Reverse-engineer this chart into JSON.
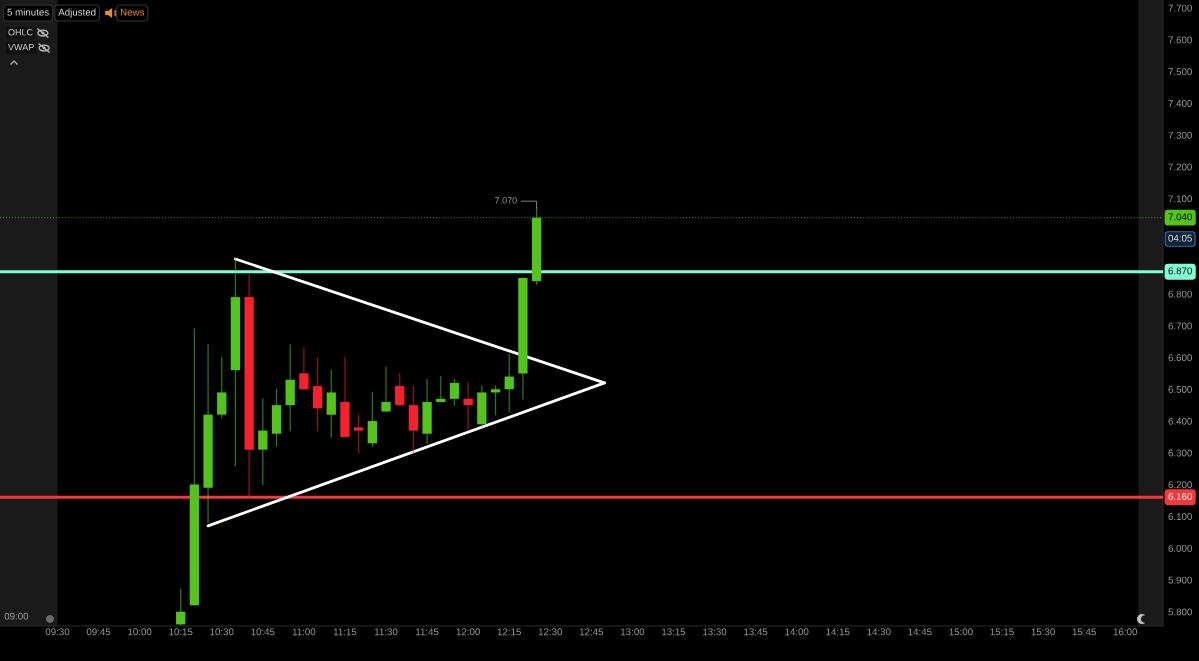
{
  "chart_data": {
    "type": "candlestick",
    "x": [
      10.25,
      10.3333,
      10.4167,
      10.5,
      10.5833,
      10.6667,
      10.75,
      10.8333,
      10.9167,
      11.0,
      11.0833,
      11.1667,
      11.25,
      11.3333,
      11.4167,
      11.5,
      11.5833,
      11.6667,
      11.75,
      11.8333,
      11.9167,
      12.0,
      12.0833,
      12.1667,
      12.25,
      12.3333,
      12.4167
    ],
    "ohlc": [
      [
        5.76,
        5.87,
        5.76,
        5.8
      ],
      [
        5.82,
        6.69,
        5.82,
        6.2
      ],
      [
        6.19,
        6.64,
        6.08,
        6.42
      ],
      [
        6.42,
        6.6,
        6.41,
        6.49
      ],
      [
        6.56,
        6.91,
        6.26,
        6.79
      ],
      [
        6.79,
        6.86,
        6.16,
        6.31
      ],
      [
        6.31,
        6.47,
        6.2,
        6.37
      ],
      [
        6.36,
        6.5,
        6.32,
        6.45
      ],
      [
        6.45,
        6.64,
        6.37,
        6.53
      ],
      [
        6.55,
        6.63,
        6.5,
        6.5
      ],
      [
        6.51,
        6.6,
        6.37,
        6.44
      ],
      [
        6.42,
        6.56,
        6.35,
        6.49
      ],
      [
        6.46,
        6.6,
        6.35,
        6.35
      ],
      [
        6.38,
        6.42,
        6.3,
        6.37
      ],
      [
        6.33,
        6.49,
        6.32,
        6.4
      ],
      [
        6.43,
        6.57,
        6.43,
        6.46
      ],
      [
        6.51,
        6.55,
        6.45,
        6.45
      ],
      [
        6.45,
        6.51,
        6.3,
        6.37
      ],
      [
        6.36,
        6.53,
        6.33,
        6.46
      ],
      [
        6.46,
        6.54,
        6.46,
        6.47
      ],
      [
        6.47,
        6.53,
        6.45,
        6.52
      ],
      [
        6.47,
        6.52,
        6.37,
        6.45
      ],
      [
        6.39,
        6.51,
        6.38,
        6.49
      ],
      [
        6.49,
        6.51,
        6.42,
        6.5
      ],
      [
        6.5,
        6.61,
        6.43,
        6.54
      ],
      [
        6.55,
        6.85,
        6.47,
        6.85
      ],
      [
        6.84,
        7.07,
        6.83,
        7.04
      ]
    ],
    "colors": [
      "#52c41a",
      "#52c41a",
      "#52c41a",
      "#52c41a",
      "#52c41a",
      "#f5222d",
      "#52c41a",
      "#52c41a",
      "#52c41a",
      "#f5222d",
      "#f5222d",
      "#52c41a",
      "#f5222d",
      "#f5222d",
      "#52c41a",
      "#52c41a",
      "#f5222d",
      "#f5222d",
      "#52c41a",
      "#52c41a",
      "#52c41a",
      "#f5222d",
      "#52c41a",
      "#52c41a",
      "#52c41a",
      "#52c41a",
      "#52c41a"
    ],
    "series": [
      {
        "type": "line",
        "color": "#ffffff",
        "x": [
          10.5833,
          12.83
        ],
        "values": [
          6.91,
          6.52
        ]
      },
      {
        "type": "line",
        "color": "#ffffff",
        "x": [
          10.4167,
          12.83
        ],
        "values": [
          6.07,
          6.52
        ]
      }
    ],
    "xlim": [
      9.15,
      16.23
    ],
    "xticks": [
      {
        "value": 9.5,
        "label": "09:30"
      },
      {
        "value": 9.75,
        "label": "09:45"
      },
      {
        "value": 10.0,
        "label": "10:00"
      },
      {
        "value": 10.25,
        "label": "10:15"
      },
      {
        "value": 10.5,
        "label": "10:30"
      },
      {
        "value": 10.75,
        "label": "10:45"
      },
      {
        "value": 11.0,
        "label": "11:00"
      },
      {
        "value": 11.25,
        "label": "11:15"
      },
      {
        "value": 11.5,
        "label": "11:30"
      },
      {
        "value": 11.75,
        "label": "11:45"
      },
      {
        "value": 12.0,
        "label": "12:00"
      },
      {
        "value": 12.25,
        "label": "12:15"
      },
      {
        "value": 12.5,
        "label": "12:30"
      },
      {
        "value": 12.75,
        "label": "12:45"
      },
      {
        "value": 13.0,
        "label": "13:00"
      },
      {
        "value": 13.25,
        "label": "13:15"
      },
      {
        "value": 13.5,
        "label": "13:30"
      },
      {
        "value": 13.75,
        "label": "13:45"
      },
      {
        "value": 14.0,
        "label": "14:00"
      },
      {
        "value": 14.25,
        "label": "14:15"
      },
      {
        "value": 14.5,
        "label": "14:30"
      },
      {
        "value": 14.75,
        "label": "14:45"
      },
      {
        "value": 15.0,
        "label": "15:00"
      },
      {
        "value": 15.25,
        "label": "15:15"
      },
      {
        "value": 15.5,
        "label": "15:30"
      },
      {
        "value": 15.75,
        "label": "15:45"
      },
      {
        "value": 16.0,
        "label": "16:00"
      }
    ],
    "ylim": [
      5.755,
      7.725
    ],
    "yticks": [
      {
        "value": 5.8,
        "label": "5.800"
      },
      {
        "value": 5.9,
        "label": "5.900"
      },
      {
        "value": 6.0,
        "label": "6.000"
      },
      {
        "value": 6.1,
        "label": "6.100"
      },
      {
        "value": 6.2,
        "label": "6.200"
      },
      {
        "value": 6.3,
        "label": "6.300"
      },
      {
        "value": 6.4,
        "label": "6.400"
      },
      {
        "value": 6.5,
        "label": "6.500"
      },
      {
        "value": 6.6,
        "label": "6.600"
      },
      {
        "value": 6.7,
        "label": "6.700"
      },
      {
        "value": 6.8,
        "label": "6.800"
      },
      {
        "value": 7.1,
        "label": "7.100"
      },
      {
        "value": 7.2,
        "label": "7.200"
      },
      {
        "value": 7.3,
        "label": "7.300"
      },
      {
        "value": 7.4,
        "label": "7.400"
      },
      {
        "value": 7.5,
        "label": "7.500"
      },
      {
        "value": 7.6,
        "label": "7.600"
      },
      {
        "value": 7.7,
        "label": "7.700"
      }
    ],
    "ref_lines": [
      {
        "axis": "y",
        "value": 6.87,
        "label": "6.870",
        "color": "#7fffd4"
      },
      {
        "axis": "y",
        "value": 6.16,
        "label": "6.160",
        "color": "#f23838"
      },
      {
        "axis": "y",
        "value": 7.04,
        "label": "7.040",
        "color": "#52c41a",
        "line_style": "dotted"
      }
    ],
    "bands": [
      {
        "axis": "x",
        "from": 9.15,
        "to": 9.5,
        "color": "#1a1a1a"
      },
      {
        "axis": "x",
        "from": 16.08,
        "to": 16.23,
        "color": "#1a1a1a"
      }
    ],
    "annotations": [
      {
        "text": "7.070",
        "x": 12.4167,
        "y": 7.07
      },
      "09:00",
      "04:05",
      "5 minutes",
      "Adjusted",
      "News",
      "OHLC",
      "VWAP"
    ]
  }
}
